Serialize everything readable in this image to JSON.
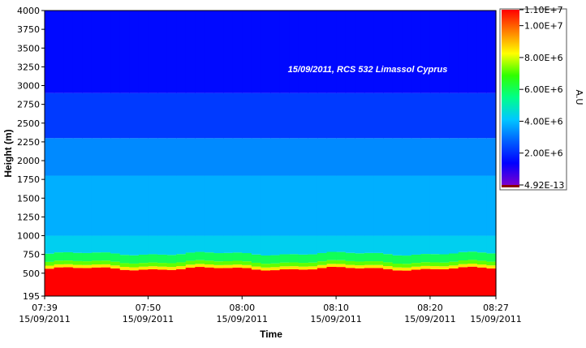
{
  "chart_data": {
    "type": "heatmap",
    "title": "",
    "annotation": "15/09/2011, RCS 532 Limassol Cyprus",
    "xlabel": "Time",
    "ylabel": "Height (m)",
    "ylim": [
      195,
      4000
    ],
    "x_range": [
      "07:39",
      "08:27"
    ],
    "x_ticks": [
      {
        "time": "07:39",
        "date": "15/09/2011"
      },
      {
        "time": "07:50",
        "date": "15/09/2011"
      },
      {
        "time": "08:00",
        "date": "15/09/2011"
      },
      {
        "time": "08:10",
        "date": "15/09/2011"
      },
      {
        "time": "08:20",
        "date": "15/09/2011"
      },
      {
        "time": "08:27",
        "date": "15/09/2011"
      }
    ],
    "y_ticks": [
      "4000",
      "3750",
      "3500",
      "3250",
      "3000",
      "2750",
      "2500",
      "2250",
      "2000",
      "1750",
      "1500",
      "1250",
      "1000",
      "750",
      "500",
      "195"
    ],
    "colorbar": {
      "label": "A.U",
      "range": [
        4.92e-13,
        11000000.0
      ],
      "ticks": [
        "1.10E+7",
        "1.00E+7",
        "8.00E+6",
        "6.00E+6",
        "4.00E+6",
        "2.00E+6",
        "4.92E-13"
      ],
      "colormap": [
        "#7a00d0",
        "#0000ff",
        "#0060ff",
        "#00c8ff",
        "#00ff88",
        "#30ff00",
        "#ffff00",
        "#ff8000",
        "#ff0000"
      ]
    },
    "profile": [
      {
        "height_max_m": 560,
        "value": 11000000.0
      },
      {
        "height_max_m": 600,
        "value": 8500000.0
      },
      {
        "height_max_m": 650,
        "value": 7200000.0
      },
      {
        "height_max_m": 760,
        "value": 6000000.0
      },
      {
        "height_max_m": 1000,
        "value": 4300000.0
      },
      {
        "height_max_m": 1800,
        "value": 3800000.0
      },
      {
        "height_max_m": 2300,
        "value": 3300000.0
      },
      {
        "height_max_m": 2900,
        "value": 2200000.0
      },
      {
        "height_max_m": 4000,
        "value": 1500000.0
      }
    ]
  }
}
